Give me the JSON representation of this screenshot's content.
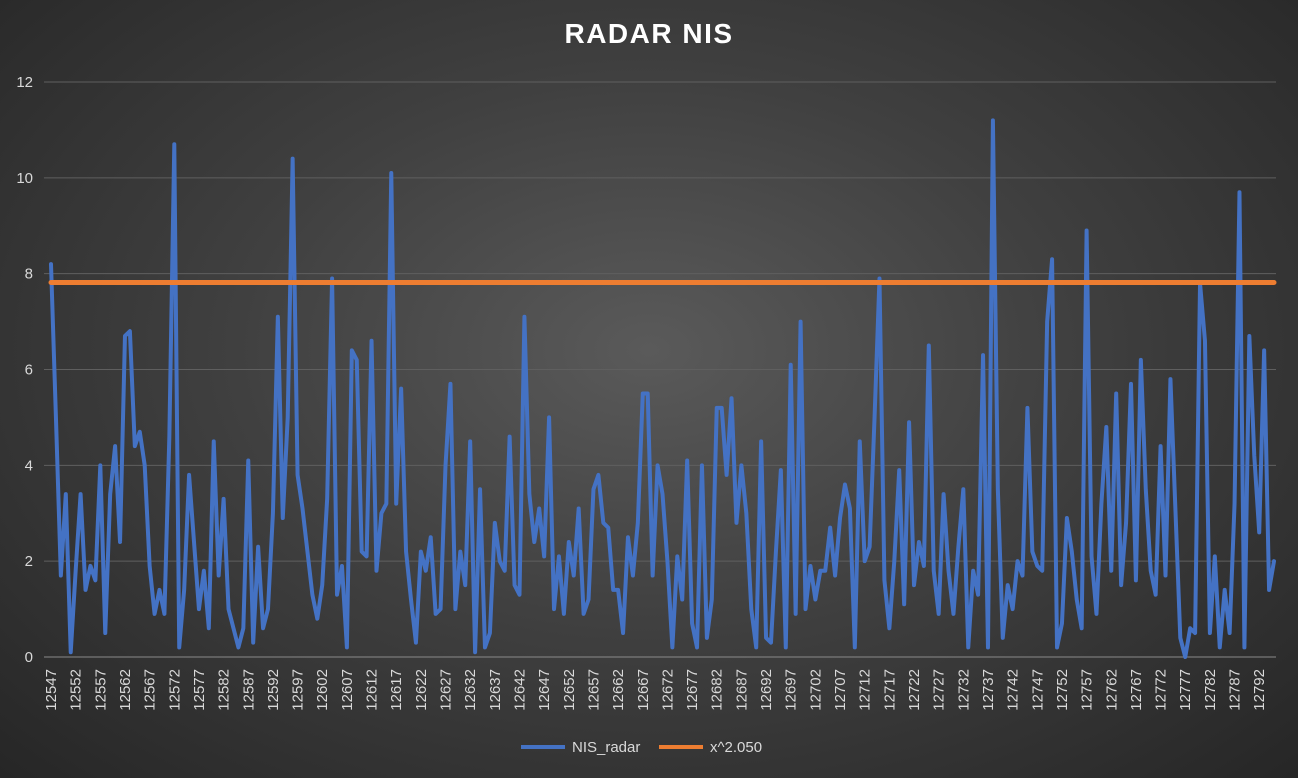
{
  "chart_data": {
    "type": "line",
    "title": "RADAR NIS",
    "xlabel": "",
    "ylabel": "",
    "ylim": [
      0,
      12
    ],
    "y_ticks": [
      0,
      2,
      4,
      6,
      8,
      10,
      12
    ],
    "x_start": 12547,
    "x_end": 12795,
    "x_tick_labels": [
      "12547",
      "12552",
      "12557",
      "12562",
      "12567",
      "12572",
      "12577",
      "12582",
      "12587",
      "12592",
      "12597",
      "12602",
      "12607",
      "12612",
      "12617",
      "12622",
      "12627",
      "12632",
      "12637",
      "12642",
      "12647",
      "12652",
      "12657",
      "12662",
      "12667",
      "12672",
      "12677",
      "12682",
      "12687",
      "12692",
      "12697",
      "12702",
      "12707",
      "12712",
      "12717",
      "12722",
      "12727",
      "12732",
      "12737",
      "12742",
      "12747",
      "12752",
      "12757",
      "12762",
      "12767",
      "12772",
      "12777",
      "12782",
      "12787",
      "12792"
    ],
    "grid": true,
    "legend_position": "bottom",
    "series": [
      {
        "name": "NIS_radar",
        "color": "#4472c4",
        "values": [
          8.2,
          5.0,
          1.7,
          3.4,
          0.1,
          1.8,
          3.4,
          1.4,
          1.9,
          1.6,
          4.0,
          0.5,
          3.4,
          4.4,
          2.4,
          6.7,
          6.8,
          4.4,
          4.7,
          4.0,
          1.9,
          0.9,
          1.4,
          0.9,
          4.6,
          10.7,
          0.2,
          1.4,
          3.8,
          2.4,
          1.0,
          1.8,
          0.6,
          4.5,
          1.7,
          3.3,
          1.0,
          0.6,
          0.2,
          0.6,
          4.1,
          0.3,
          2.3,
          0.6,
          1.0,
          3.0,
          7.1,
          2.9,
          5.0,
          10.4,
          3.8,
          3.1,
          2.2,
          1.3,
          0.8,
          1.5,
          3.3,
          7.9,
          1.3,
          1.9,
          0.2,
          6.4,
          6.2,
          2.2,
          2.1,
          6.6,
          1.8,
          3.0,
          3.2,
          10.1,
          3.2,
          5.6,
          2.2,
          1.2,
          0.3,
          2.2,
          1.8,
          2.5,
          0.9,
          1.0,
          4.0,
          5.7,
          1.0,
          2.2,
          1.5,
          4.5,
          0.1,
          3.5,
          0.2,
          0.5,
          2.8,
          2.0,
          1.8,
          4.6,
          1.5,
          1.3,
          7.1,
          3.4,
          2.4,
          3.1,
          2.1,
          5.0,
          1.0,
          2.1,
          0.9,
          2.4,
          1.7,
          3.1,
          0.9,
          1.2,
          3.5,
          3.8,
          2.8,
          2.7,
          1.4,
          1.4,
          0.5,
          2.5,
          1.7,
          2.8,
          5.5,
          5.5,
          1.7,
          4.0,
          3.4,
          2.0,
          0.2,
          2.1,
          1.2,
          4.1,
          0.7,
          0.2,
          4.0,
          0.4,
          1.2,
          5.2,
          5.2,
          3.8,
          5.4,
          2.8,
          4.0,
          3.0,
          1.0,
          0.2,
          4.5,
          0.4,
          0.3,
          2.2,
          3.9,
          0.2,
          6.1,
          0.9,
          7.0,
          1.0,
          1.9,
          1.2,
          1.8,
          1.8,
          2.7,
          1.7,
          2.9,
          3.6,
          3.1,
          0.2,
          4.5,
          2.0,
          2.3,
          5.0,
          7.9,
          1.6,
          0.6,
          2.0,
          3.9,
          1.1,
          4.9,
          1.5,
          2.4,
          1.9,
          6.5,
          1.8,
          0.9,
          3.4,
          1.8,
          0.9,
          2.3,
          3.5,
          0.2,
          1.8,
          1.3,
          6.3,
          0.2,
          11.2,
          3.5,
          0.4,
          1.5,
          1.0,
          2.0,
          1.7,
          5.2,
          2.2,
          1.9,
          1.8,
          7.0,
          8.3,
          0.2,
          0.7,
          2.9,
          2.2,
          1.2,
          0.6,
          8.9,
          2.1,
          0.9,
          3.2,
          4.8,
          1.8,
          5.5,
          1.5,
          2.8,
          5.7,
          1.6,
          6.2,
          3.5,
          1.8,
          1.3,
          4.4,
          1.7,
          5.8,
          3.1,
          0.4,
          0.0,
          0.6,
          0.5,
          7.8,
          6.6,
          0.5,
          2.1,
          0.2,
          1.4,
          0.5,
          3.2,
          9.7,
          0.2,
          6.7,
          4.2,
          2.6,
          6.4,
          1.4,
          2.0
        ]
      },
      {
        "name": "x^2.050",
        "color": "#ed7d31",
        "values": [
          7.815
        ]
      }
    ]
  }
}
